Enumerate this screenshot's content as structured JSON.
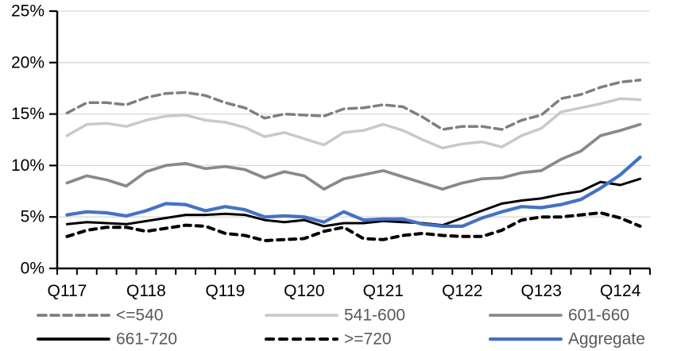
{
  "chart_data": {
    "type": "line",
    "title": "",
    "x_axis": {
      "tick_labels": [
        "Q117",
        "Q118",
        "Q119",
        "Q120",
        "Q121",
        "Q122",
        "Q123",
        "Q124"
      ],
      "label_every_n_points": 4,
      "points_per_series": 30
    },
    "y_axis": {
      "tick_labels": [
        "0%",
        "5%",
        "10%",
        "15%",
        "20%",
        "25%"
      ],
      "min": 0,
      "max": 25,
      "tick_step": 5,
      "unit": "%"
    },
    "grid": "horizontal",
    "legend_position": "bottom",
    "axis_color": "#000000",
    "gridline_color": "#D9D9D9",
    "legend_text_color": "#595959",
    "series": [
      {
        "name": "<=540",
        "color": "#7F7F7F",
        "style": "dashed",
        "width": 3.5,
        "z": 3,
        "values": [
          15.1,
          16.1,
          16.1,
          15.9,
          16.6,
          17.0,
          17.1,
          16.8,
          16.1,
          15.6,
          14.6,
          15.0,
          14.9,
          14.8,
          15.5,
          15.6,
          15.9,
          15.7,
          14.7,
          13.5,
          13.8,
          13.8,
          13.5,
          14.4,
          14.9,
          16.5,
          16.9,
          17.6,
          18.1,
          18.3
        ]
      },
      {
        "name": "541-600",
        "color": "#C9C9C9",
        "style": "solid",
        "width": 3.5,
        "z": 1,
        "values": [
          12.9,
          14.0,
          14.1,
          13.8,
          14.4,
          14.8,
          14.9,
          14.4,
          14.2,
          13.7,
          12.8,
          13.2,
          12.6,
          12.0,
          13.2,
          13.4,
          14.0,
          13.4,
          12.5,
          11.7,
          12.1,
          12.3,
          11.8,
          12.9,
          13.6,
          15.2,
          15.6,
          16.0,
          16.5,
          16.4
        ]
      },
      {
        "name": "601-660",
        "color": "#898989",
        "style": "solid",
        "width": 3.7,
        "z": 2,
        "values": [
          8.3,
          9.0,
          8.6,
          8.0,
          9.4,
          10.0,
          10.2,
          9.7,
          9.9,
          9.6,
          8.8,
          9.4,
          9.0,
          7.7,
          8.7,
          9.1,
          9.5,
          8.9,
          8.3,
          7.7,
          8.3,
          8.7,
          8.8,
          9.3,
          9.5,
          10.6,
          11.4,
          12.9,
          13.4,
          14.0
        ]
      },
      {
        "name": "661-720",
        "color": "#000000",
        "style": "solid",
        "width": 3.0,
        "z": 4,
        "values": [
          4.3,
          4.5,
          4.4,
          4.3,
          4.6,
          4.9,
          5.2,
          5.2,
          5.3,
          5.2,
          4.7,
          4.5,
          4.7,
          4.1,
          4.4,
          4.4,
          4.6,
          4.5,
          4.4,
          4.2,
          4.9,
          5.6,
          6.3,
          6.6,
          6.8,
          7.2,
          7.5,
          8.4,
          8.1,
          8.7
        ]
      },
      {
        "name": ">=720",
        "color": "#000000",
        "style": "dashed",
        "width": 4.0,
        "z": 6,
        "values": [
          3.1,
          3.7,
          4.0,
          4.0,
          3.6,
          3.9,
          4.2,
          4.1,
          3.4,
          3.2,
          2.7,
          2.8,
          2.9,
          3.6,
          4.0,
          2.9,
          2.8,
          3.2,
          3.4,
          3.2,
          3.1,
          3.1,
          3.7,
          4.7,
          5.0,
          5.0,
          5.2,
          5.4,
          4.9,
          4.1
        ]
      },
      {
        "name": "Aggregate",
        "color": "#4472C4",
        "style": "solid",
        "width": 4.2,
        "z": 5,
        "values": [
          5.2,
          5.5,
          5.4,
          5.1,
          5.6,
          6.3,
          6.2,
          5.6,
          6.0,
          5.7,
          5.0,
          5.1,
          5.0,
          4.5,
          5.5,
          4.7,
          4.8,
          4.8,
          4.3,
          4.1,
          4.1,
          4.9,
          5.5,
          6.0,
          5.9,
          6.2,
          6.7,
          7.8,
          9.1,
          10.8
        ]
      }
    ]
  }
}
